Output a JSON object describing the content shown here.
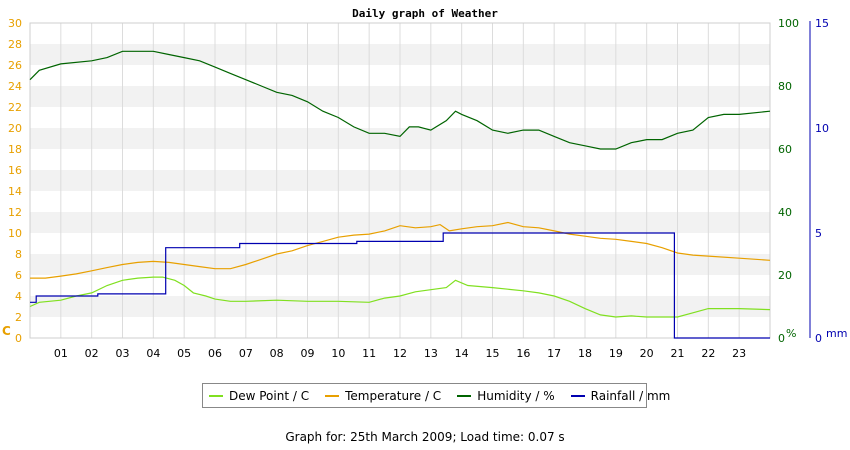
{
  "footer_text": "Graph for: 25th March 2009; Load time: 0.07 s",
  "chart_data": {
    "type": "line",
    "title": "Daily graph of Weather",
    "x_ticks": [
      "01",
      "02",
      "03",
      "04",
      "05",
      "06",
      "07",
      "08",
      "09",
      "10",
      "11",
      "12",
      "13",
      "14",
      "15",
      "16",
      "17",
      "18",
      "19",
      "20",
      "21",
      "22",
      "23"
    ],
    "xlim": [
      0,
      24
    ],
    "axes": {
      "left": {
        "unit_label": "C",
        "min": 0,
        "max": 30,
        "ticks": [
          0,
          2,
          4,
          6,
          8,
          10,
          12,
          14,
          16,
          18,
          20,
          22,
          24,
          26,
          28,
          30
        ],
        "color": "#e8a000"
      },
      "right_humidity": {
        "unit_label": "%",
        "min": 0,
        "max": 100,
        "ticks": [
          0,
          20,
          40,
          60,
          80,
          100
        ],
        "color": "#006400"
      },
      "right_rain": {
        "unit_label": "mm",
        "min": 0,
        "max": 15,
        "ticks": [
          0,
          5,
          10,
          15
        ],
        "color": "#0000b0"
      }
    },
    "grid": true,
    "legend_position": "bottom",
    "series": [
      {
        "name": "Dew Point / C",
        "axis": "left",
        "color": "#80e020",
        "points": [
          [
            0,
            3.0
          ],
          [
            0.3,
            3.4
          ],
          [
            1,
            3.6
          ],
          [
            1.5,
            4.0
          ],
          [
            2,
            4.3
          ],
          [
            2.5,
            5.0
          ],
          [
            3,
            5.5
          ],
          [
            3.5,
            5.7
          ],
          [
            4,
            5.8
          ],
          [
            4.3,
            5.8
          ],
          [
            4.7,
            5.5
          ],
          [
            5,
            5.0
          ],
          [
            5.3,
            4.3
          ],
          [
            5.7,
            4.0
          ],
          [
            6,
            3.7
          ],
          [
            6.5,
            3.5
          ],
          [
            7,
            3.5
          ],
          [
            8,
            3.6
          ],
          [
            9,
            3.5
          ],
          [
            10,
            3.5
          ],
          [
            11,
            3.4
          ],
          [
            11.5,
            3.8
          ],
          [
            12,
            4.0
          ],
          [
            12.5,
            4.4
          ],
          [
            13,
            4.6
          ],
          [
            13.5,
            4.8
          ],
          [
            13.8,
            5.5
          ],
          [
            14.2,
            5.0
          ],
          [
            15,
            4.8
          ],
          [
            16,
            4.5
          ],
          [
            16.5,
            4.3
          ],
          [
            17,
            4.0
          ],
          [
            17.5,
            3.5
          ],
          [
            18,
            2.8
          ],
          [
            18.5,
            2.2
          ],
          [
            19,
            2.0
          ],
          [
            19.5,
            2.1
          ],
          [
            20,
            2.0
          ],
          [
            20.5,
            2.0
          ],
          [
            21,
            2.0
          ],
          [
            21.5,
            2.4
          ],
          [
            22,
            2.8
          ],
          [
            23,
            2.8
          ],
          [
            24,
            2.7
          ]
        ]
      },
      {
        "name": "Temperature / C",
        "axis": "left",
        "color": "#e8a000",
        "points": [
          [
            0,
            5.7
          ],
          [
            0.5,
            5.7
          ],
          [
            1,
            5.9
          ],
          [
            1.5,
            6.1
          ],
          [
            2,
            6.4
          ],
          [
            2.5,
            6.7
          ],
          [
            3,
            7.0
          ],
          [
            3.5,
            7.2
          ],
          [
            4,
            7.3
          ],
          [
            4.5,
            7.2
          ],
          [
            5,
            7.0
          ],
          [
            5.5,
            6.8
          ],
          [
            6,
            6.6
          ],
          [
            6.5,
            6.6
          ],
          [
            7,
            7.0
          ],
          [
            7.5,
            7.5
          ],
          [
            8,
            8.0
          ],
          [
            8.5,
            8.3
          ],
          [
            9,
            8.8
          ],
          [
            9.5,
            9.2
          ],
          [
            10,
            9.6
          ],
          [
            10.5,
            9.8
          ],
          [
            11,
            9.9
          ],
          [
            11.5,
            10.2
          ],
          [
            12,
            10.7
          ],
          [
            12.5,
            10.5
          ],
          [
            13,
            10.6
          ],
          [
            13.3,
            10.8
          ],
          [
            13.6,
            10.2
          ],
          [
            14,
            10.4
          ],
          [
            14.5,
            10.6
          ],
          [
            15,
            10.7
          ],
          [
            15.5,
            11.0
          ],
          [
            16,
            10.6
          ],
          [
            16.5,
            10.5
          ],
          [
            17,
            10.2
          ],
          [
            17.5,
            9.9
          ],
          [
            18,
            9.7
          ],
          [
            18.5,
            9.5
          ],
          [
            19,
            9.4
          ],
          [
            19.5,
            9.2
          ],
          [
            20,
            9.0
          ],
          [
            20.5,
            8.6
          ],
          [
            21,
            8.1
          ],
          [
            21.5,
            7.9
          ],
          [
            22,
            7.8
          ],
          [
            23,
            7.6
          ],
          [
            24,
            7.4
          ]
        ]
      },
      {
        "name": "Humidity / %",
        "axis": "right_humidity",
        "color": "#006400",
        "points": [
          [
            0,
            82
          ],
          [
            0.3,
            85
          ],
          [
            1,
            87
          ],
          [
            2,
            88
          ],
          [
            2.5,
            89
          ],
          [
            3,
            91
          ],
          [
            3.5,
            91
          ],
          [
            4,
            91
          ],
          [
            4.5,
            90
          ],
          [
            5,
            89
          ],
          [
            5.5,
            88
          ],
          [
            6,
            86
          ],
          [
            6.5,
            84
          ],
          [
            7,
            82
          ],
          [
            7.5,
            80
          ],
          [
            8,
            78
          ],
          [
            8.5,
            77
          ],
          [
            9,
            75
          ],
          [
            9.5,
            72
          ],
          [
            10,
            70
          ],
          [
            10.5,
            67
          ],
          [
            11,
            65
          ],
          [
            11.5,
            65
          ],
          [
            12,
            64
          ],
          [
            12.3,
            67
          ],
          [
            12.6,
            67
          ],
          [
            13,
            66
          ],
          [
            13.5,
            69
          ],
          [
            13.8,
            72
          ],
          [
            14,
            71
          ],
          [
            14.5,
            69
          ],
          [
            15,
            66
          ],
          [
            15.5,
            65
          ],
          [
            16,
            66
          ],
          [
            16.5,
            66
          ],
          [
            17,
            64
          ],
          [
            17.5,
            62
          ],
          [
            18,
            61
          ],
          [
            18.5,
            60
          ],
          [
            19,
            60
          ],
          [
            19.5,
            62
          ],
          [
            20,
            63
          ],
          [
            20.5,
            63
          ],
          [
            21,
            65
          ],
          [
            21.5,
            66
          ],
          [
            22,
            70
          ],
          [
            22.5,
            71
          ],
          [
            23,
            71
          ],
          [
            24,
            72
          ]
        ]
      },
      {
        "name": "Rainfall / mm",
        "axis": "right_rain",
        "color": "#0000b0",
        "step": true,
        "points": [
          [
            0,
            1.7
          ],
          [
            0.2,
            1.7
          ],
          [
            0.2,
            2.0
          ],
          [
            2.2,
            2.0
          ],
          [
            2.2,
            2.1
          ],
          [
            4.4,
            2.1
          ],
          [
            4.4,
            4.3
          ],
          [
            6.8,
            4.3
          ],
          [
            6.8,
            4.5
          ],
          [
            10.6,
            4.5
          ],
          [
            10.6,
            4.6
          ],
          [
            13.4,
            4.6
          ],
          [
            13.4,
            5.0
          ],
          [
            20.9,
            5.0
          ],
          [
            20.9,
            0
          ],
          [
            24,
            0
          ]
        ]
      }
    ]
  }
}
